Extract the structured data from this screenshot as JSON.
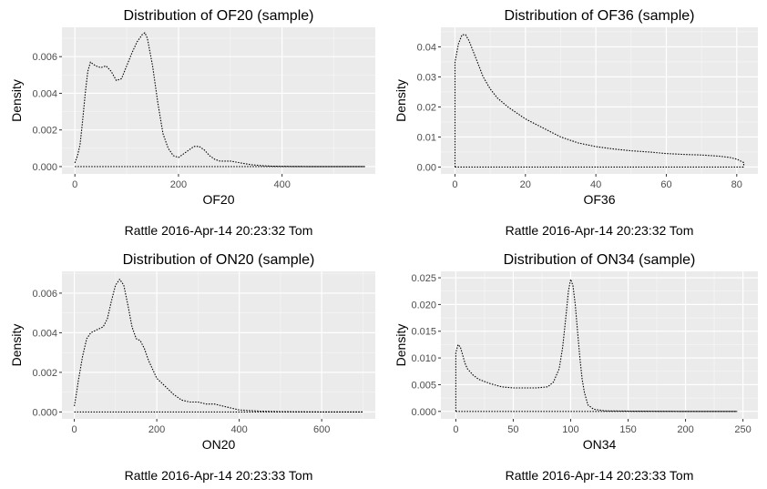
{
  "chart_data": [
    {
      "type": "line",
      "title": "Distribution of OF20 (sample)",
      "xlabel": "OF20",
      "ylabel": "Density",
      "caption": "Rattle 2016-Apr-14 20:23:32 Tom",
      "xlim": [
        -25,
        580
      ],
      "ylim": [
        -0.0004,
        0.0076
      ],
      "xticks": [
        0,
        200,
        400
      ],
      "xtick_labels": [
        "0",
        "200",
        "400"
      ],
      "yticks": [
        0,
        0.002,
        0.004,
        0.006
      ],
      "ytick_labels": [
        "0.000",
        "0.002",
        "0.004",
        "0.006"
      ],
      "grid": true,
      "line_style": "dotted",
      "series": [
        {
          "x": [
            0,
            5,
            10,
            15,
            20,
            25,
            30,
            35,
            40,
            50,
            60,
            70,
            80,
            90,
            100,
            110,
            120,
            130,
            135,
            140,
            150,
            160,
            170,
            180,
            190,
            200,
            210,
            220,
            230,
            240,
            250,
            260,
            270,
            280,
            300,
            320,
            340,
            360,
            380,
            400,
            450,
            500,
            560
          ],
          "y": [
            0.0002,
            0.0006,
            0.0012,
            0.0025,
            0.004,
            0.0052,
            0.0057,
            0.0056,
            0.0055,
            0.0054,
            0.0055,
            0.0052,
            0.0047,
            0.0048,
            0.0055,
            0.0062,
            0.0068,
            0.0072,
            0.0073,
            0.007,
            0.0055,
            0.0035,
            0.0018,
            0.001,
            0.0006,
            0.0005,
            0.0007,
            0.0009,
            0.0011,
            0.0011,
            0.0009,
            0.0006,
            0.0004,
            0.0003,
            0.0003,
            0.0002,
            0.0001,
            5e-05,
            2e-05,
            1e-05,
            0.0,
            0.0,
            0.0
          ]
        }
      ]
    },
    {
      "type": "line",
      "title": "Distribution of OF36 (sample)",
      "xlabel": "OF36",
      "ylabel": "Density",
      "caption": "Rattle 2016-Apr-14 20:23:32 Tom",
      "xlim": [
        -4,
        86
      ],
      "ylim": [
        -0.0023,
        0.0465
      ],
      "xticks": [
        0,
        20,
        40,
        60,
        80
      ],
      "xtick_labels": [
        "0",
        "20",
        "40",
        "60",
        "80"
      ],
      "yticks": [
        0,
        0.01,
        0.02,
        0.03,
        0.04
      ],
      "ytick_labels": [
        "0.00",
        "0.01",
        "0.02",
        "0.03",
        "0.04"
      ],
      "grid": true,
      "line_style": "dotted",
      "series": [
        {
          "x": [
            0,
            0,
            1,
            2,
            3,
            4,
            5,
            6,
            8,
            10,
            12,
            15,
            20,
            25,
            30,
            35,
            40,
            45,
            50,
            55,
            60,
            65,
            70,
            75,
            78,
            80,
            82,
            82
          ],
          "y": [
            0.0,
            0.035,
            0.041,
            0.044,
            0.044,
            0.042,
            0.039,
            0.036,
            0.03,
            0.026,
            0.023,
            0.02,
            0.016,
            0.013,
            0.01,
            0.008,
            0.0068,
            0.006,
            0.0054,
            0.005,
            0.0045,
            0.0042,
            0.004,
            0.0036,
            0.0032,
            0.0026,
            0.0015,
            0.0
          ]
        }
      ]
    },
    {
      "type": "line",
      "title": "Distribution of ON20 (sample)",
      "xlabel": "ON20",
      "ylabel": "Density",
      "caption": "Rattle 2016-Apr-14 20:23:33 Tom",
      "xlim": [
        -30,
        730
      ],
      "ylim": [
        -0.00035,
        0.0071
      ],
      "xticks": [
        0,
        200,
        400,
        600
      ],
      "xtick_labels": [
        "0",
        "200",
        "400",
        "600"
      ],
      "yticks": [
        0,
        0.002,
        0.004,
        0.006
      ],
      "ytick_labels": [
        "0.000",
        "0.002",
        "0.004",
        "0.006"
      ],
      "grid": true,
      "line_style": "dotted",
      "series": [
        {
          "x": [
            0,
            5,
            10,
            20,
            30,
            40,
            50,
            60,
            70,
            80,
            90,
            100,
            110,
            120,
            130,
            140,
            150,
            160,
            170,
            180,
            200,
            220,
            240,
            260,
            280,
            300,
            320,
            340,
            360,
            400,
            450,
            500,
            600,
            700
          ],
          "y": [
            0.0003,
            0.0009,
            0.0016,
            0.0028,
            0.0037,
            0.004,
            0.0041,
            0.0042,
            0.0043,
            0.0047,
            0.0056,
            0.0064,
            0.0067,
            0.0064,
            0.0054,
            0.0043,
            0.0037,
            0.0036,
            0.0032,
            0.0026,
            0.0017,
            0.0013,
            0.0009,
            0.0006,
            0.0005,
            0.0005,
            0.0004,
            0.0004,
            0.0003,
            0.0001,
            4e-05,
            2e-05,
            0.0,
            0.0
          ]
        }
      ]
    },
    {
      "type": "line",
      "title": "Distribution of ON34 (sample)",
      "xlabel": "ON34",
      "ylabel": "Density",
      "caption": "Rattle 2016-Apr-14 20:23:33 Tom",
      "xlim": [
        -13,
        263
      ],
      "ylim": [
        -0.0014,
        0.0262
      ],
      "xticks": [
        0,
        50,
        100,
        150,
        200,
        250
      ],
      "xtick_labels": [
        "0",
        "50",
        "100",
        "150",
        "200",
        "250"
      ],
      "yticks": [
        0,
        0.005,
        0.01,
        0.015,
        0.02,
        0.025
      ],
      "ytick_labels": [
        "0.000",
        "0.005",
        "0.010",
        "0.015",
        "0.020",
        "0.025"
      ],
      "grid": true,
      "line_style": "dotted",
      "series": [
        {
          "x": [
            0,
            0,
            2,
            4,
            6,
            8,
            10,
            15,
            20,
            30,
            40,
            50,
            60,
            70,
            80,
            85,
            90,
            93,
            96,
            98,
            100,
            102,
            104,
            106,
            108,
            110,
            112,
            115,
            120,
            130,
            150,
            200,
            245,
            245
          ],
          "y": [
            0.0,
            0.011,
            0.0125,
            0.012,
            0.0105,
            0.009,
            0.008,
            0.0068,
            0.006,
            0.0052,
            0.0046,
            0.0044,
            0.0044,
            0.0044,
            0.0046,
            0.0055,
            0.008,
            0.012,
            0.018,
            0.0225,
            0.0247,
            0.0235,
            0.02,
            0.015,
            0.01,
            0.006,
            0.0035,
            0.0012,
            0.0004,
            0.0001,
            5e-05,
            0.0,
            0.0,
            0.0
          ]
        }
      ]
    }
  ]
}
